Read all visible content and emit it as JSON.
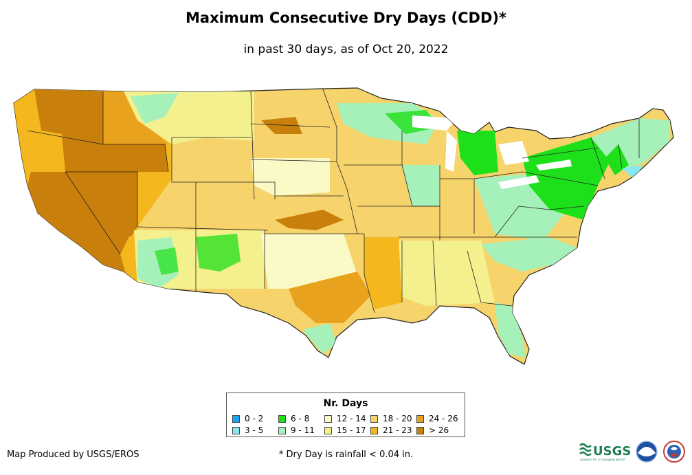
{
  "header": {
    "title": "Maximum Consecutive Dry Days (CDD)*",
    "subtitle": "in past 30 days, as of Oct 20, 2022"
  },
  "legend": {
    "title": "Nr. Days",
    "items": [
      {
        "label": "0 - 2",
        "color": "#1fa2f5"
      },
      {
        "label": "6 - 8",
        "color": "#1ee01a"
      },
      {
        "label": "12 - 14",
        "color": "#fafac6"
      },
      {
        "label": "18 - 20",
        "color": "#f7d36b"
      },
      {
        "label": "24 - 26",
        "color": "#e9a21d"
      },
      {
        "label": "3 - 5",
        "color": "#86e8ee"
      },
      {
        "label": "9 - 11",
        "color": "#a6f0b9"
      },
      {
        "label": "15 - 17",
        "color": "#f4f08e"
      },
      {
        "label": "21 - 23",
        "color": "#f4b71e"
      },
      {
        "label": "> 26",
        "color": "#c97f0b"
      }
    ]
  },
  "footer": {
    "credit": "Map Produced by USGS/EROS",
    "footnote": "* Dry Day is rainfall < 0.04 in."
  },
  "logos": {
    "usgs": "USGS",
    "usgs_tagline": "science for a changing world"
  }
}
